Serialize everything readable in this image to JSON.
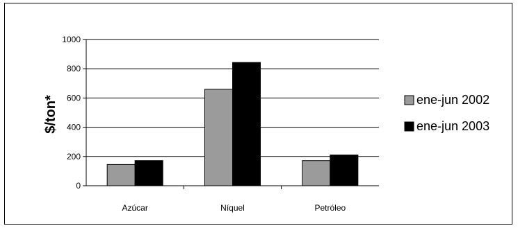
{
  "chart_data": {
    "type": "bar",
    "ylabel": "$/ton*",
    "categories": [
      "Azúcar",
      "Níquel",
      "Petróleo"
    ],
    "series": [
      {
        "name": "ene-jun 2002",
        "values": [
          145,
          660,
          172
        ]
      },
      {
        "name": "ene-jun 2003",
        "values": [
          172,
          843,
          210
        ]
      }
    ],
    "ylim": [
      0,
      1000
    ],
    "yticks": [
      0,
      200,
      400,
      600,
      800,
      1000
    ],
    "grid": true,
    "legend": "right",
    "colors": {
      "series0": "#9b9b9b",
      "series1": "#000000"
    }
  }
}
